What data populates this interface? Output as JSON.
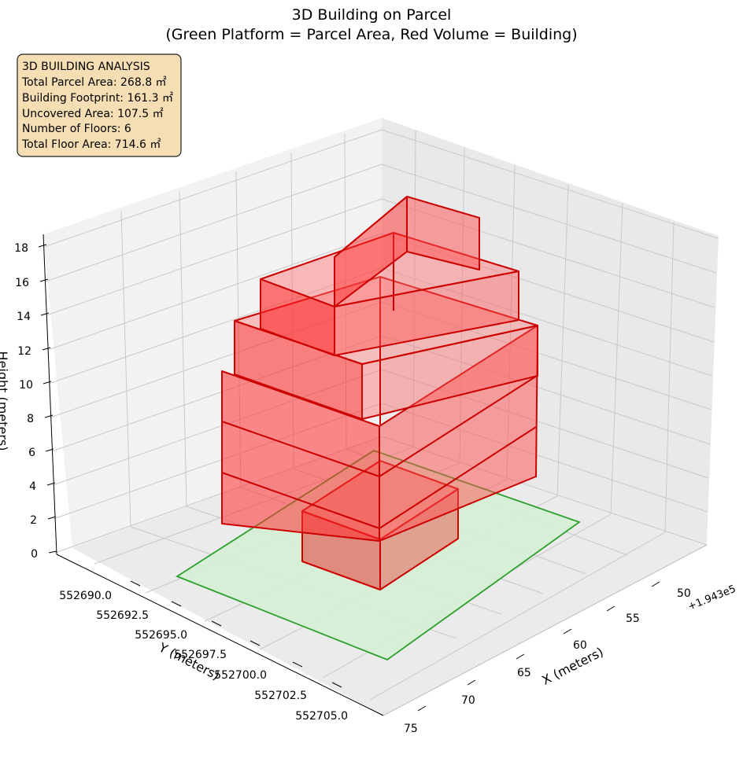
{
  "chart_data": {
    "type": "3d-box",
    "title": "3D Building on Parcel",
    "subtitle": "(Green Platform = Parcel Area, Red Volume = Building)",
    "xlabel": "X (meters)",
    "ylabel": "Y (meters)",
    "zlabel": "Height (meters)",
    "x_offset_label": "+1.943e5",
    "x_ticks": [
      "50",
      "55",
      "60",
      "65",
      "70",
      "75"
    ],
    "y_ticks": [
      "552690.0",
      "552692.5",
      "552695.0",
      "552697.5",
      "552700.0",
      "552702.5",
      "552705.0"
    ],
    "z_ticks": [
      "0",
      "2",
      "4",
      "6",
      "8",
      "10",
      "12",
      "14",
      "16",
      "18"
    ],
    "grid": true,
    "colors": {
      "parcel_fill": "#d5f0d5",
      "parcel_edge": "#2ca02c",
      "building_fill": "#ff0000",
      "building_edge": "#cc0000",
      "box_fill": "#f5deb3"
    },
    "parcel_area_m2": 268.8,
    "building_footprint_m2": 161.3,
    "uncovered_area_m2": 107.5,
    "floors": 6,
    "total_floor_area_m2": 714.6
  },
  "info_box": {
    "lines": [
      "3D BUILDING ANALYSIS",
      "Total Parcel Area: 268.8 ㎡",
      "Building Footprint: 161.3 ㎡",
      "Uncovered Area: 107.5 ㎡",
      "Number of Floors: 6",
      "Total Floor Area: 714.6 ㎡"
    ]
  }
}
